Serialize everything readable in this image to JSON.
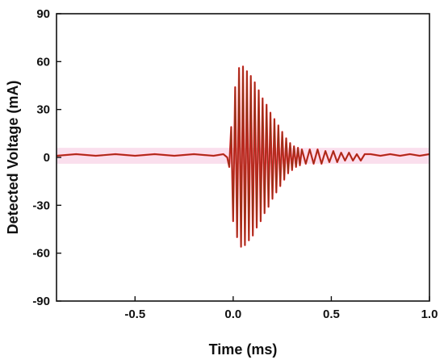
{
  "chart_data": {
    "type": "line",
    "xlabel": "Time (ms)",
    "ylabel": "Detected Voltage (mA)",
    "xlim": [
      -0.9,
      1.0
    ],
    "ylim": [
      -90,
      90
    ],
    "x_ticks": [
      -0.5,
      0.0,
      0.5,
      1.0
    ],
    "x_tick_labels": [
      "-0.5",
      "0.0",
      "0.5",
      "1.0"
    ],
    "y_ticks": [
      -90,
      -60,
      -30,
      0,
      30,
      60,
      90
    ],
    "y_tick_labels": [
      "-90",
      "-60",
      "-30",
      "0",
      "30",
      "60",
      "90"
    ],
    "grid": false,
    "legend": "none",
    "colors": {
      "signal": "#e8202a",
      "overlay": "#7a3a12",
      "noise_band": "#f4b8d8"
    },
    "series": [
      {
        "x": [
          -0.9,
          -0.8,
          -0.7,
          -0.6,
          -0.5,
          -0.4,
          -0.3,
          -0.2,
          -0.1,
          -0.05,
          -0.03,
          -0.02,
          -0.01,
          0.0,
          0.01,
          0.02,
          0.03,
          0.04,
          0.05,
          0.06,
          0.07,
          0.08,
          0.09,
          0.1,
          0.11,
          0.12,
          0.13,
          0.14,
          0.15,
          0.16,
          0.17,
          0.18,
          0.19,
          0.2,
          0.21,
          0.22,
          0.23,
          0.24,
          0.25,
          0.26,
          0.27,
          0.28,
          0.29,
          0.3,
          0.31,
          0.32,
          0.33,
          0.34,
          0.35,
          0.37,
          0.39,
          0.41,
          0.43,
          0.45,
          0.47,
          0.49,
          0.51,
          0.53,
          0.55,
          0.57,
          0.59,
          0.61,
          0.63,
          0.65,
          0.67,
          0.7,
          0.75,
          0.8,
          0.85,
          0.9,
          0.95,
          1.0
        ],
        "values": [
          1,
          2,
          1,
          2,
          1,
          2,
          1,
          2,
          1,
          2,
          0,
          -6,
          19,
          -40,
          44,
          -50,
          56,
          -56,
          57,
          -55,
          54,
          -52,
          51,
          -49,
          47,
          -44,
          42,
          -40,
          37,
          -35,
          33,
          -31,
          28,
          -26,
          24,
          -22,
          20,
          -18,
          16,
          -14,
          12,
          -10,
          9,
          -8,
          7,
          -6,
          6,
          -5,
          5,
          -4,
          5,
          -4,
          5,
          -4,
          4,
          -3,
          4,
          -3,
          3,
          -2,
          3,
          -2,
          2,
          -2,
          2,
          2,
          1,
          2,
          1,
          2,
          1,
          2
        ]
      }
    ]
  }
}
